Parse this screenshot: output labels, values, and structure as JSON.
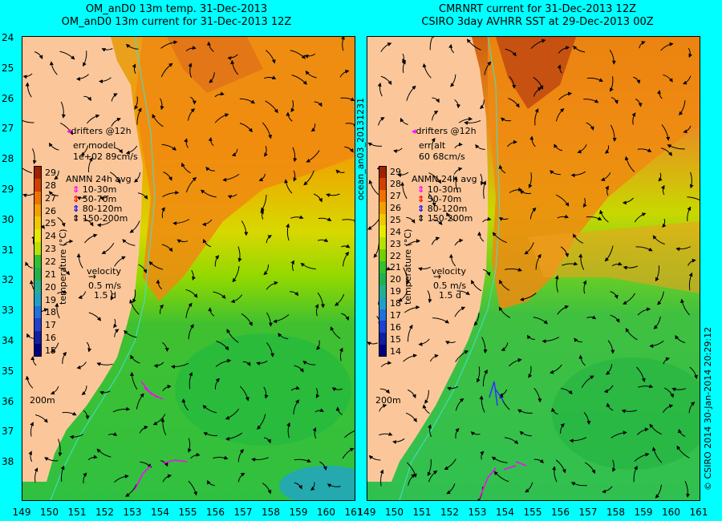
{
  "left_panel": {
    "title_line1": "OM_anD0 13m temp. 31-Dec-2013",
    "title_line2": "OM_anD0 13m current for 31-Dec-2013 12Z",
    "drifters_label": "drifters @12h",
    "err_label": "err model",
    "err_value": "1e+02 89cm/s",
    "anmn_title": "ANMN 24h avg",
    "depths": [
      "10-30m",
      "50-70m",
      "80-120m",
      "150-200m"
    ],
    "velocity_label": "velocity",
    "velocity_value": "0.5 m/s",
    "velocity_days": "1.5 d",
    "depth_contour_label": "200m",
    "colorbar_ticks": [
      "29",
      "28",
      "27",
      "26",
      "25",
      "24",
      "23",
      "22",
      "21",
      "20",
      "19",
      "18",
      "17",
      "16",
      "15"
    ],
    "colorbar_label": "temperature (°C)"
  },
  "right_panel": {
    "title_line1": "CMRNRT current for 31-Dec-2013 12Z",
    "title_line2": "CSIRO 3day AVHRR SST at 29-Dec-2013 00Z",
    "drifters_label": "drifters @12h",
    "err_label": "err alt",
    "err_value": "60 68cm/s",
    "anmn_title": "ANMN 24h avg",
    "depths": [
      "10-30m",
      "50-70m",
      "80-120m",
      "150-200m"
    ],
    "velocity_label": "velocity",
    "velocity_value": "0.5 m/s",
    "velocity_days": "1.5 d",
    "depth_contour_label": "200m",
    "colorbar_ticks": [
      "29",
      "28",
      "27",
      "26",
      "25",
      "24",
      "23",
      "22",
      "21",
      "20",
      "19",
      "18",
      "17",
      "16",
      "15",
      "14"
    ],
    "colorbar_label": "temperature (°C)"
  },
  "middle_vertical_label": "ocean_an03_20131231",
  "right_vertical_label": "© CSIRO 2014   30-Jan-2014 20:29:12",
  "lat_ticks": [
    "24",
    "25",
    "26",
    "27",
    "28",
    "29",
    "30",
    "31",
    "32",
    "33",
    "34",
    "35",
    "36",
    "37",
    "38"
  ],
  "lon_ticks_left": [
    "149",
    "150",
    "151",
    "152",
    "153",
    "154",
    "155",
    "156",
    "157",
    "158",
    "159",
    "160",
    "161"
  ],
  "lon_ticks_right": [
    "149",
    "150",
    "151",
    "152",
    "153",
    "154",
    "155",
    "156",
    "157",
    "158",
    "159",
    "160",
    "161"
  ],
  "colors": {
    "background": "#00ffff",
    "land": "#fbc79a",
    "warm": "#f07a00",
    "mid": "#e8d800",
    "cool": "#30c030",
    "coast_line": "#40e0d0",
    "depth_colors": [
      "#ff00ff",
      "#ff0000",
      "#0000ff",
      "#000000"
    ]
  }
}
